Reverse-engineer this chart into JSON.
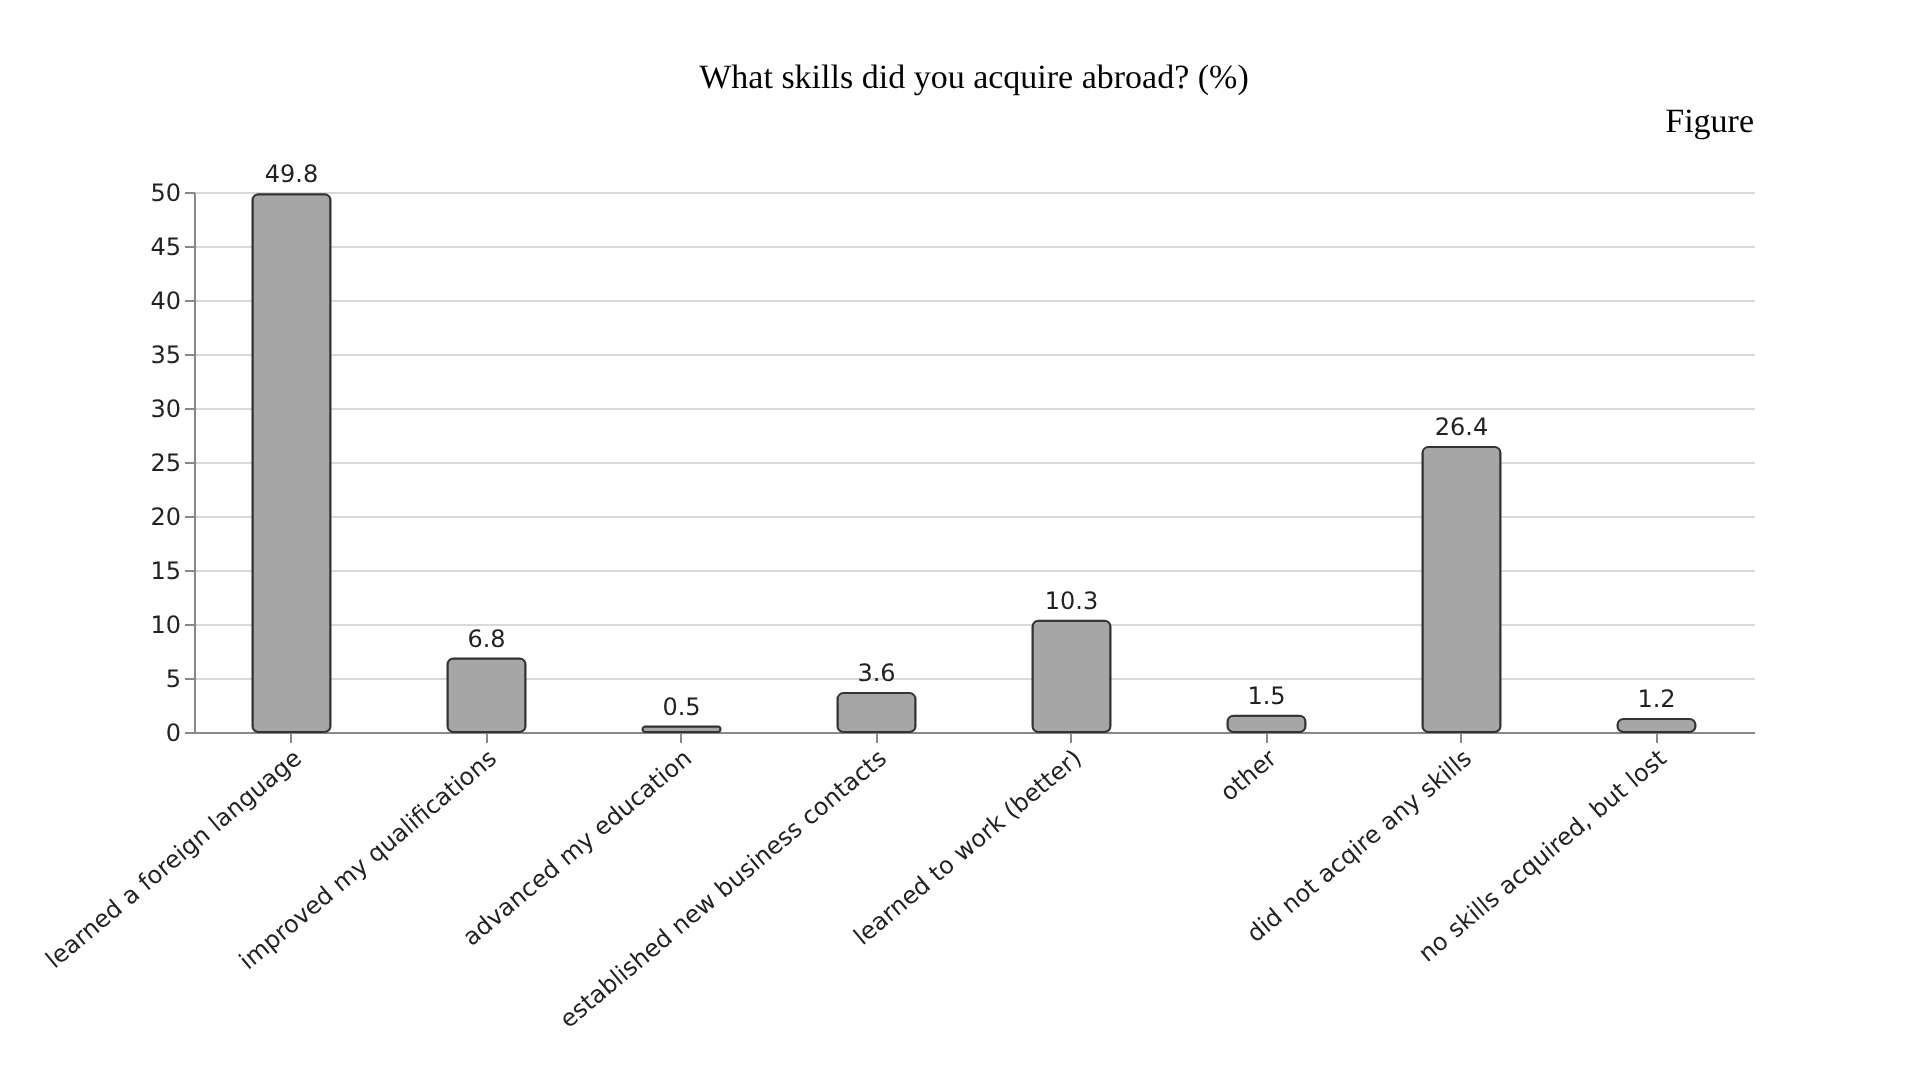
{
  "chart_data": {
    "type": "bar",
    "title": "What skills did you acquire abroad? (%)",
    "annotations": [
      "Figure"
    ],
    "categories": [
      "learned a foreign language",
      "improved my qualifications",
      "advanced my education",
      "established new business contacts",
      "learned to work (better)",
      "other",
      "did not acqire any skills",
      "no skills acquired, but lost"
    ],
    "values": [
      49.8,
      6.8,
      0.5,
      3.6,
      10.3,
      1.5,
      26.4,
      1.2
    ],
    "color": "#a6a6a6",
    "ylim": [
      0,
      50
    ],
    "yticks": [
      0,
      5,
      10,
      15,
      20,
      25,
      30,
      35,
      40,
      45,
      50
    ],
    "grid": "y",
    "data_labels": true
  }
}
